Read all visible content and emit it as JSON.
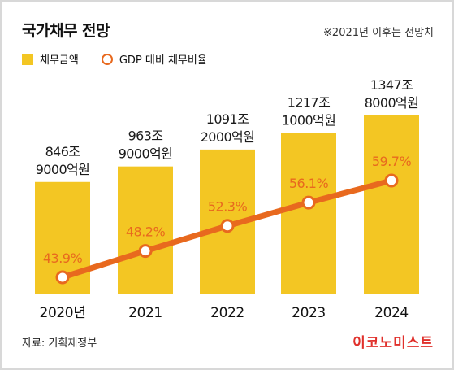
{
  "header": {
    "title": "국가채무 전망",
    "note": "※2021년 이후는 전망치"
  },
  "legend": {
    "bar_label": "채무금액",
    "line_label": "GDP 대비 채무비율"
  },
  "footer": {
    "source": "자료: 기획재정부",
    "brand": "이코노미스트"
  },
  "colors": {
    "bar": "#f3c623",
    "line": "#e8691e",
    "ratio_text": "#e8691e"
  },
  "chart_data": {
    "type": "bar",
    "categories": [
      "2020년",
      "2021",
      "2022",
      "2023",
      "2024"
    ],
    "series": [
      {
        "name": "채무금액",
        "type": "bar",
        "values": [
          846.9,
          963.9,
          1091.2,
          1217.1,
          1347.8
        ],
        "value_labels": [
          [
            "846조",
            "9000억원"
          ],
          [
            "963조",
            "9000억원"
          ],
          [
            "1091조",
            "2000억원"
          ],
          [
            "1217조",
            "1000억원"
          ],
          [
            "1347조",
            "8000억원"
          ]
        ]
      },
      {
        "name": "GDP 대비 채무비율",
        "type": "line",
        "values": [
          43.9,
          48.2,
          52.3,
          56.1,
          59.7
        ],
        "value_labels": [
          "43.9%",
          "48.2%",
          "52.3%",
          "56.1%",
          "59.7%"
        ]
      }
    ]
  }
}
